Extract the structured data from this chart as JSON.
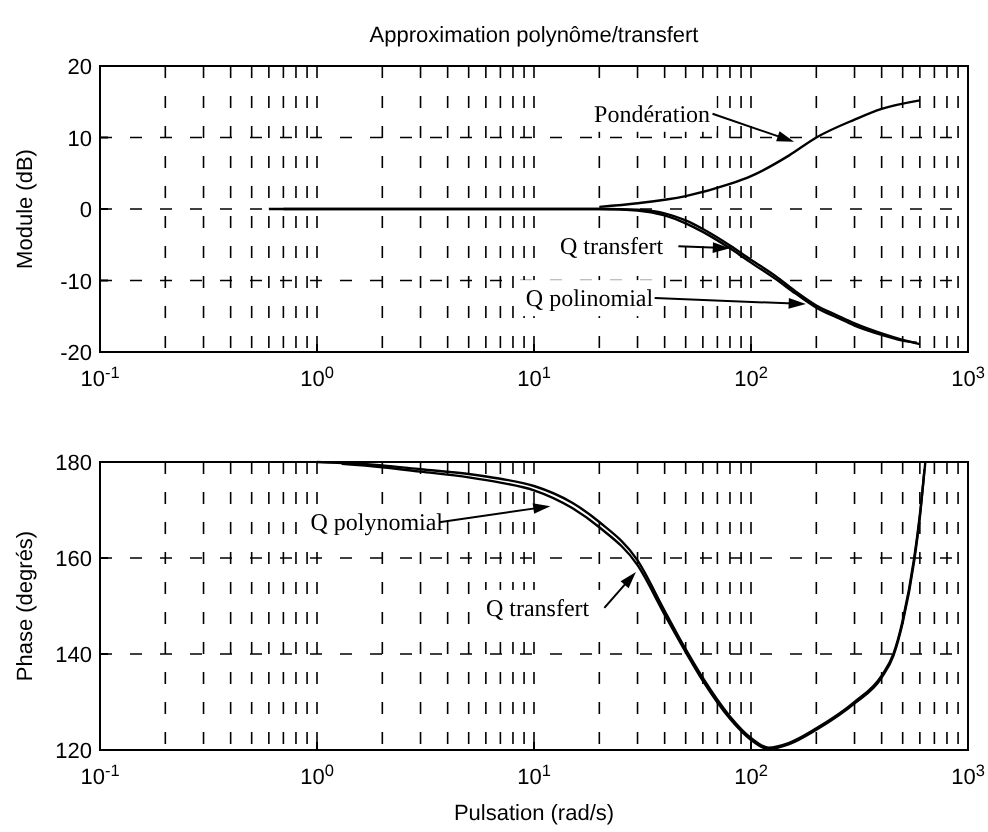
{
  "chart_data": [
    {
      "type": "line",
      "title": "Approximation polynôme/transfert",
      "ylabel": "Module (dB)",
      "log": "x",
      "grid": true,
      "xlim": [
        0.1,
        1000
      ],
      "ylim": [
        -20,
        20
      ],
      "yticks": [
        -20,
        -10,
        0,
        10,
        20
      ],
      "xticks": [
        {
          "value": 0.1,
          "label": "10$^{-1}$"
        },
        {
          "value": 1,
          "label": "10$^{0}$"
        },
        {
          "value": 10,
          "label": "10$^{1}$"
        },
        {
          "value": 100,
          "label": "10$^{2}$"
        },
        {
          "value": 1000,
          "label": "10$^{3}$"
        }
      ],
      "series": [
        {
          "color": "#000000",
          "x": [
            20,
            30,
            50,
            80,
            100,
            150,
            200,
            300,
            400,
            600
          ],
          "values": [
            0.3,
            0.8,
            1.8,
            3.5,
            4.6,
            7.5,
            10,
            12.5,
            14,
            15.2
          ]
        },
        {
          "color": "#000000",
          "x": [
            0.7,
            1,
            2,
            5,
            10,
            20,
            30,
            40,
            50,
            60,
            80,
            100,
            130,
            160,
            200,
            250,
            300,
            400,
            500,
            580
          ],
          "values": [
            0,
            0,
            0,
            0,
            0,
            0,
            -0.2,
            -0.9,
            -2,
            -3.2,
            -5.5,
            -7.5,
            -9.8,
            -11.8,
            -13.8,
            -15.2,
            -16.3,
            -17.6,
            -18.4,
            -18.7
          ]
        },
        {
          "color": "#000000",
          "x": [
            0.6,
            1,
            2,
            5,
            10,
            20,
            30,
            40,
            50,
            60,
            80,
            100,
            130,
            160,
            200,
            250,
            300,
            400,
            500,
            600
          ],
          "values": [
            0,
            0,
            0,
            0,
            0,
            0,
            -0.1,
            -0.6,
            -1.6,
            -2.8,
            -5.1,
            -7.1,
            -9.4,
            -11.5,
            -13.5,
            -14.9,
            -16,
            -17.4,
            -18.3,
            -18.9
          ]
        }
      ],
      "annotations": [
        {
          "text": "Pondération",
          "x": 158,
          "y": 9.4
        },
        {
          "text": "Q transfert",
          "x": 80,
          "y": -5.5
        },
        {
          "text": "Q polinomial",
          "x": 179,
          "y": -13.3
        }
      ]
    },
    {
      "type": "line",
      "xlabel": "Pulsation (rad/s)",
      "ylabel": "Phase (degrés)",
      "log": "x",
      "grid": true,
      "xlim": [
        0.1,
        1000
      ],
      "ylim": [
        120,
        180
      ],
      "yticks": [
        120,
        140,
        160,
        180
      ],
      "xticks": [
        {
          "value": 0.1,
          "label": "10$^{-1}$"
        },
        {
          "value": 1,
          "label": "10$^{0}$"
        },
        {
          "value": 10,
          "label": "10$^{1}$"
        },
        {
          "value": 100,
          "label": "10$^{2}$"
        },
        {
          "value": 1000,
          "label": "10$^{3}$"
        }
      ],
      "series": [
        {
          "color": "#000000",
          "x": [
            1,
            2,
            3,
            5,
            7,
            10,
            15,
            20,
            30,
            40,
            50,
            60,
            80,
            100,
            120,
            150,
            200,
            300,
            400,
            453,
            500,
            565,
            600,
            636
          ],
          "values": [
            180,
            179.3,
            178.5,
            177.5,
            176.5,
            175,
            171.5,
            167.5,
            159.5,
            149,
            141,
            135,
            127,
            122.5,
            120.5,
            121.5,
            124.5,
            130,
            135.5,
            140,
            147,
            160,
            169,
            180
          ]
        },
        {
          "color": "#000000",
          "x": [
            1.3,
            2,
            3,
            5,
            7,
            10,
            15,
            20,
            30,
            40,
            50,
            60,
            80,
            100,
            120,
            150,
            200,
            300,
            400,
            453,
            500,
            565,
            600,
            630
          ],
          "values": [
            179.6,
            178.9,
            178,
            176.8,
            175.7,
            174.1,
            170.4,
            166.4,
            158.5,
            148.2,
            140.4,
            134.4,
            126.5,
            122.1,
            120.2,
            121.2,
            124.2,
            129.7,
            135.1,
            139.6,
            146.5,
            159.4,
            168.5,
            178.5
          ]
        }
      ],
      "annotations": [
        {
          "text": "Q polynomial",
          "x": 11.9,
          "y": 170.8
        },
        {
          "text": "Q transfert",
          "x": 29.5,
          "y": 157.1
        }
      ]
    }
  ]
}
